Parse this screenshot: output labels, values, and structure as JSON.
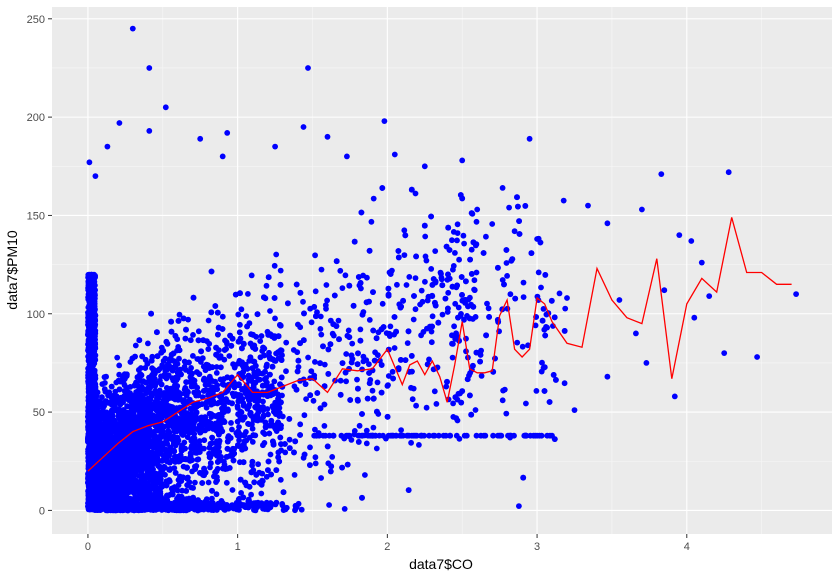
{
  "chart_data": {
    "type": "scatter",
    "xlabel": "data7$CO",
    "ylabel": "data7$PM10",
    "xlim": [
      -0.24,
      4.97
    ],
    "ylim": [
      -12,
      256
    ],
    "x_ticks": [
      0,
      1,
      2,
      3,
      4
    ],
    "x_tick_labels": [
      "0",
      "1",
      "2",
      "3",
      "4"
    ],
    "y_ticks": [
      0,
      50,
      100,
      150,
      200,
      250
    ],
    "y_tick_labels": [
      "0",
      "50",
      "100",
      "150",
      "200",
      "250"
    ],
    "grid": true,
    "point_color": "#0000ff",
    "line_color": "#ff0000",
    "panel_background": "#ebebeb",
    "series": [
      {
        "kind": "points",
        "outliers": [
          {
            "x": 0.3,
            "y": 245
          },
          {
            "x": 0.41,
            "y": 225
          },
          {
            "x": 1.47,
            "y": 225
          },
          {
            "x": 0.52,
            "y": 205
          },
          {
            "x": 0.21,
            "y": 197
          },
          {
            "x": 1.98,
            "y": 198
          },
          {
            "x": 0.93,
            "y": 192
          },
          {
            "x": 0.41,
            "y": 193
          },
          {
            "x": 1.44,
            "y": 195
          },
          {
            "x": 2.95,
            "y": 189
          },
          {
            "x": 0.75,
            "y": 189
          },
          {
            "x": 1.6,
            "y": 190
          },
          {
            "x": 2.05,
            "y": 181
          },
          {
            "x": 4.28,
            "y": 172
          },
          {
            "x": 3.83,
            "y": 171
          },
          {
            "x": 2.5,
            "y": 178
          },
          {
            "x": 2.77,
            "y": 164
          },
          {
            "x": 3.34,
            "y": 155
          },
          {
            "x": 3.47,
            "y": 146
          },
          {
            "x": 3.7,
            "y": 153
          },
          {
            "x": 3.95,
            "y": 140
          },
          {
            "x": 4.03,
            "y": 137
          },
          {
            "x": 4.1,
            "y": 126
          },
          {
            "x": 2.85,
            "y": 142
          },
          {
            "x": 3.0,
            "y": 138
          },
          {
            "x": 3.55,
            "y": 107
          },
          {
            "x": 3.66,
            "y": 90
          },
          {
            "x": 3.73,
            "y": 75
          },
          {
            "x": 3.92,
            "y": 58
          },
          {
            "x": 4.05,
            "y": 98
          },
          {
            "x": 4.25,
            "y": 80
          },
          {
            "x": 4.47,
            "y": 78
          },
          {
            "x": 4.73,
            "y": 110
          },
          {
            "x": 3.25,
            "y": 51
          },
          {
            "x": 3.47,
            "y": 68
          },
          {
            "x": 3.1,
            "y": 38
          },
          {
            "x": 2.82,
            "y": 37
          },
          {
            "x": 1.85,
            "y": 18
          },
          {
            "x": 1.08,
            "y": 12
          },
          {
            "x": 0.63,
            "y": 10
          },
          {
            "x": 0.01,
            "y": 177
          },
          {
            "x": 0.05,
            "y": 170
          },
          {
            "x": 0.13,
            "y": 185
          },
          {
            "x": 0.9,
            "y": 180
          },
          {
            "x": 1.25,
            "y": 185
          },
          {
            "x": 1.73,
            "y": 180
          },
          {
            "x": 2.25,
            "y": 175
          },
          {
            "x": 2.6,
            "y": 153
          },
          {
            "x": 3.2,
            "y": 108
          },
          {
            "x": 3.85,
            "y": 112
          },
          {
            "x": 4.15,
            "y": 109
          }
        ],
        "cloud_note": "dense point cloud concentrated between x 0 and 1.2, y 0 to 120, thinning towards x 3"
      },
      {
        "kind": "line",
        "x": [
          0.0,
          0.1,
          0.2,
          0.3,
          0.4,
          0.5,
          0.6,
          0.7,
          0.8,
          0.9,
          1.0,
          1.1,
          1.2,
          1.3,
          1.4,
          1.5,
          1.6,
          1.7,
          1.8,
          1.9,
          2.0,
          2.05,
          2.1,
          2.15,
          2.2,
          2.25,
          2.3,
          2.35,
          2.4,
          2.45,
          2.5,
          2.55,
          2.6,
          2.65,
          2.7,
          2.75,
          2.8,
          2.85,
          2.9,
          2.95,
          3.0,
          3.05,
          3.1,
          3.2,
          3.3,
          3.4,
          3.5,
          3.6,
          3.7,
          3.8,
          3.9,
          4.0,
          4.1,
          4.2,
          4.3,
          4.4,
          4.5,
          4.6,
          4.7
        ],
        "y": [
          20,
          27,
          34,
          40,
          43,
          45,
          50,
          55,
          57,
          60,
          69,
          60,
          60,
          63,
          66,
          67,
          60,
          72,
          71,
          72,
          82,
          73,
          64,
          74,
          76,
          69,
          76,
          68,
          55,
          74,
          96,
          72,
          70,
          70,
          71,
          99,
          107,
          82,
          78,
          82,
          108,
          105,
          96,
          85,
          83,
          123,
          107,
          98,
          95,
          128,
          67,
          105,
          118,
          111,
          149,
          121,
          121,
          115,
          115
        ]
      }
    ]
  }
}
